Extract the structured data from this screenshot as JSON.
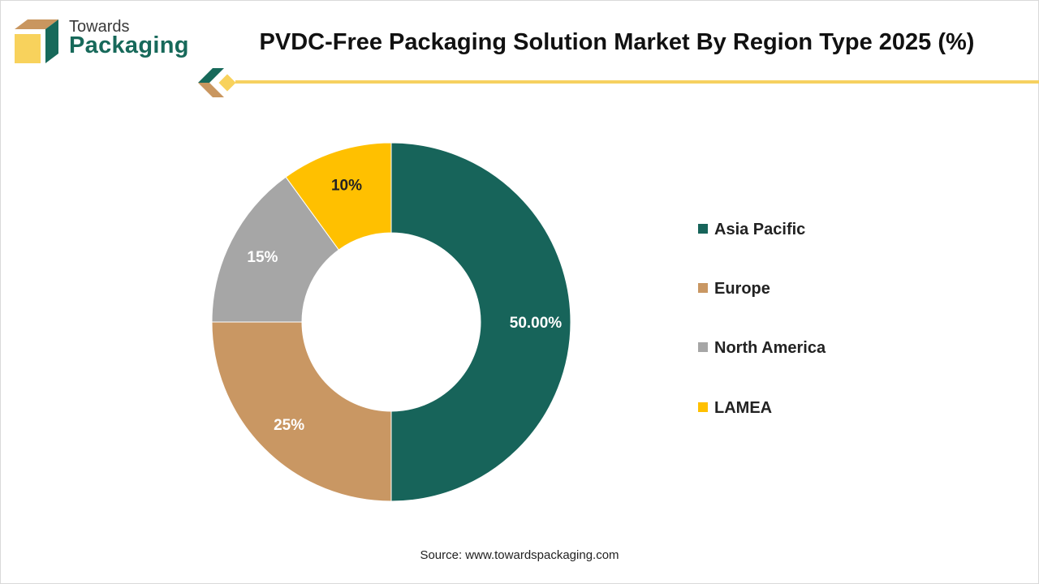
{
  "brand": {
    "line1": "Towards",
    "line2": "Packaging"
  },
  "header": {
    "title": "PVDC-Free Packaging Solution Market By Region Type 2025 (%)"
  },
  "colors": {
    "accent_rule": "#f6d160",
    "brand_green": "#17695a",
    "brand_tan": "#c9965f",
    "brand_yellow": "#f8d25c"
  },
  "chart_data": {
    "type": "pie",
    "style": "donut",
    "categories": [
      "Asia Pacific",
      "Europe",
      "North America",
      "LAMEA"
    ],
    "values": [
      50,
      25,
      15,
      10
    ],
    "data_labels": [
      "50.00%",
      "25%",
      "15%",
      "10%"
    ],
    "colors": [
      "#17645a",
      "#c99763",
      "#a6a6a6",
      "#ffc000"
    ],
    "start_angle_deg": 0,
    "direction": "clockwise",
    "legend_position": "right"
  },
  "footer": {
    "source": "Source: www.towardspackaging.com"
  }
}
